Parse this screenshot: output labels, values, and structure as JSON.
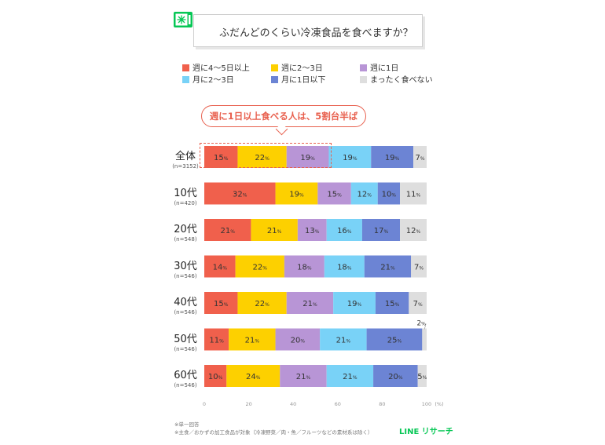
{
  "title": "ふだんどのくらい冷凍食品を食べますか？",
  "callout": "週に1日以上食べる人は、5割台半ば",
  "footnotes": [
    "※単一回答",
    "※主食／おかずの加工食品が対象（冷凍野菜／肉・魚／フルーツなどの素材系は除く）"
  ],
  "brand": "LINE リサーチ",
  "colors": {
    "週に4～5日以上": "#f0604c",
    "週に2～3日": "#fdd000",
    "週に1日": "#b895d6",
    "月に2～3日": "#79d2f7",
    "月に1日以下": "#6c84d4",
    "まったく食べない": "#dedede",
    "brand": "#06c755",
    "accent": "#e8604e"
  },
  "chart_data": {
    "type": "bar",
    "orientation": "horizontal",
    "stacked": true,
    "value_unit": "%",
    "xlabel": "(%)",
    "xlim": [
      0,
      100
    ],
    "xticks": [
      0,
      20,
      40,
      60,
      80,
      100
    ],
    "legend_position": "top",
    "categories": [
      {
        "label": "全体",
        "n": "(n=3152)"
      },
      {
        "label": "10代",
        "n": "(n=420)"
      },
      {
        "label": "20代",
        "n": "(n=548)"
      },
      {
        "label": "30代",
        "n": "(n=546)"
      },
      {
        "label": "40代",
        "n": "(n=546)"
      },
      {
        "label": "50代",
        "n": "(n=546)"
      },
      {
        "label": "60代",
        "n": "(n=546)"
      }
    ],
    "series": [
      {
        "name": "週に4～5日以上",
        "values": [
          15,
          32,
          21,
          14,
          15,
          11,
          10
        ]
      },
      {
        "name": "週に2～3日",
        "values": [
          22,
          19,
          21,
          22,
          22,
          21,
          24
        ]
      },
      {
        "name": "週に1日",
        "values": [
          19,
          15,
          13,
          18,
          21,
          20,
          21
        ]
      },
      {
        "name": "月に2～3日",
        "values": [
          19,
          12,
          16,
          18,
          19,
          21,
          21
        ]
      },
      {
        "name": "月に1日以下",
        "values": [
          19,
          10,
          17,
          21,
          15,
          25,
          20
        ]
      },
      {
        "name": "まったく食べない",
        "values": [
          7,
          11,
          12,
          7,
          7,
          2,
          5
        ]
      }
    ],
    "annotations": [
      "2%"
    ]
  }
}
